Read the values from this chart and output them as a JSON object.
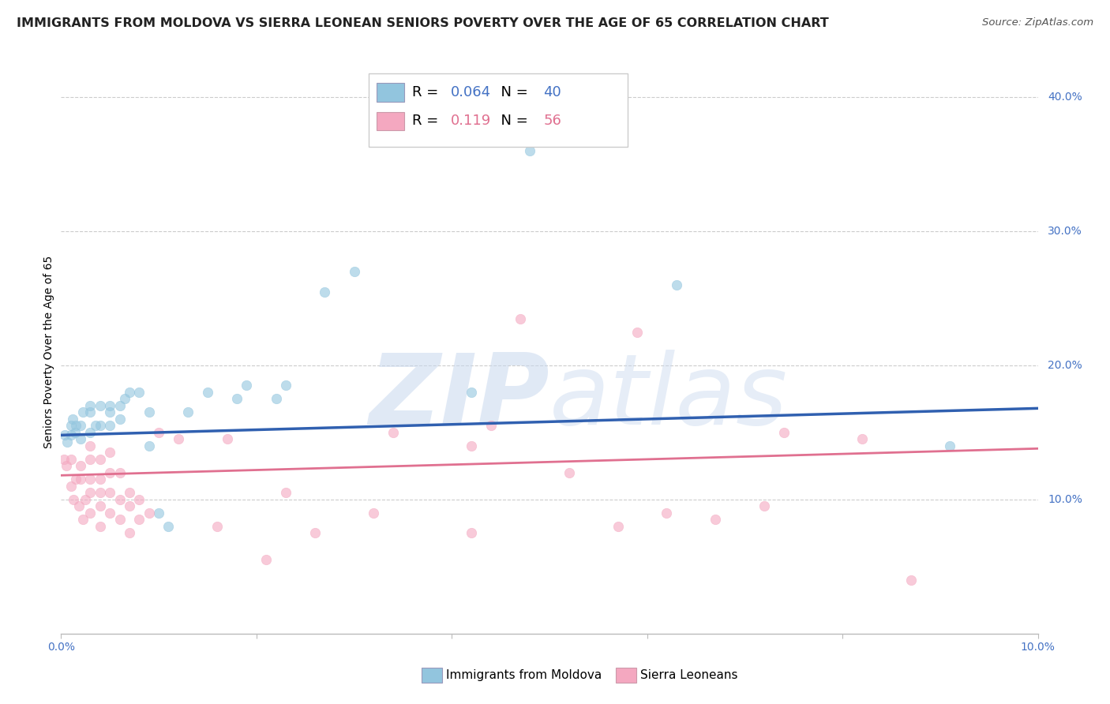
{
  "title": "IMMIGRANTS FROM MOLDOVA VS SIERRA LEONEAN SENIORS POVERTY OVER THE AGE OF 65 CORRELATION CHART",
  "source": "Source: ZipAtlas.com",
  "ylabel": "Seniors Poverty Over the Age of 65",
  "xlim": [
    0.0,
    0.1
  ],
  "ylim": [
    0.0,
    0.42
  ],
  "legend_entries": [
    {
      "label": "Immigrants from Moldova",
      "color": "#92c5de",
      "r": "0.064",
      "n": "40"
    },
    {
      "label": "Sierra Leoneans",
      "color": "#f4a8c0",
      "r": "0.119",
      "n": "56"
    }
  ],
  "watermark_zip": "ZIP",
  "watermark_atlas": "atlas",
  "blue_line_color": "#3060b0",
  "pink_line_color": "#e07090",
  "blue_tick_color": "#4472c4",
  "grid_color": "#cccccc",
  "background_color": "#ffffff",
  "title_fontsize": 11.5,
  "axis_label_fontsize": 10,
  "tick_fontsize": 10,
  "legend_fontsize": 13,
  "blue_scatter": [
    [
      0.0004,
      0.148
    ],
    [
      0.0006,
      0.143
    ],
    [
      0.001,
      0.148
    ],
    [
      0.001,
      0.155
    ],
    [
      0.0012,
      0.16
    ],
    [
      0.0014,
      0.15
    ],
    [
      0.0015,
      0.155
    ],
    [
      0.002,
      0.145
    ],
    [
      0.002,
      0.155
    ],
    [
      0.0022,
      0.165
    ],
    [
      0.003,
      0.15
    ],
    [
      0.003,
      0.165
    ],
    [
      0.003,
      0.17
    ],
    [
      0.0035,
      0.155
    ],
    [
      0.004,
      0.155
    ],
    [
      0.004,
      0.17
    ],
    [
      0.005,
      0.155
    ],
    [
      0.005,
      0.165
    ],
    [
      0.005,
      0.17
    ],
    [
      0.006,
      0.16
    ],
    [
      0.006,
      0.17
    ],
    [
      0.0065,
      0.175
    ],
    [
      0.007,
      0.18
    ],
    [
      0.008,
      0.18
    ],
    [
      0.009,
      0.14
    ],
    [
      0.009,
      0.165
    ],
    [
      0.01,
      0.09
    ],
    [
      0.011,
      0.08
    ],
    [
      0.013,
      0.165
    ],
    [
      0.015,
      0.18
    ],
    [
      0.018,
      0.175
    ],
    [
      0.019,
      0.185
    ],
    [
      0.022,
      0.175
    ],
    [
      0.023,
      0.185
    ],
    [
      0.027,
      0.255
    ],
    [
      0.03,
      0.27
    ],
    [
      0.042,
      0.18
    ],
    [
      0.048,
      0.36
    ],
    [
      0.063,
      0.26
    ],
    [
      0.091,
      0.14
    ]
  ],
  "pink_scatter": [
    [
      0.0003,
      0.13
    ],
    [
      0.0005,
      0.125
    ],
    [
      0.001,
      0.11
    ],
    [
      0.001,
      0.13
    ],
    [
      0.0013,
      0.1
    ],
    [
      0.0015,
      0.115
    ],
    [
      0.0018,
      0.095
    ],
    [
      0.002,
      0.115
    ],
    [
      0.002,
      0.125
    ],
    [
      0.0022,
      0.085
    ],
    [
      0.0025,
      0.1
    ],
    [
      0.003,
      0.09
    ],
    [
      0.003,
      0.105
    ],
    [
      0.003,
      0.115
    ],
    [
      0.003,
      0.13
    ],
    [
      0.003,
      0.14
    ],
    [
      0.004,
      0.08
    ],
    [
      0.004,
      0.095
    ],
    [
      0.004,
      0.105
    ],
    [
      0.004,
      0.115
    ],
    [
      0.004,
      0.13
    ],
    [
      0.005,
      0.09
    ],
    [
      0.005,
      0.105
    ],
    [
      0.005,
      0.12
    ],
    [
      0.005,
      0.135
    ],
    [
      0.006,
      0.085
    ],
    [
      0.006,
      0.1
    ],
    [
      0.006,
      0.12
    ],
    [
      0.007,
      0.075
    ],
    [
      0.007,
      0.095
    ],
    [
      0.007,
      0.105
    ],
    [
      0.008,
      0.085
    ],
    [
      0.008,
      0.1
    ],
    [
      0.009,
      0.09
    ],
    [
      0.01,
      0.15
    ],
    [
      0.012,
      0.145
    ],
    [
      0.016,
      0.08
    ],
    [
      0.017,
      0.145
    ],
    [
      0.021,
      0.055
    ],
    [
      0.023,
      0.105
    ],
    [
      0.026,
      0.075
    ],
    [
      0.032,
      0.09
    ],
    [
      0.034,
      0.15
    ],
    [
      0.042,
      0.075
    ],
    [
      0.042,
      0.14
    ],
    [
      0.044,
      0.155
    ],
    [
      0.047,
      0.235
    ],
    [
      0.052,
      0.12
    ],
    [
      0.057,
      0.08
    ],
    [
      0.059,
      0.225
    ],
    [
      0.062,
      0.09
    ],
    [
      0.067,
      0.085
    ],
    [
      0.072,
      0.095
    ],
    [
      0.074,
      0.15
    ],
    [
      0.082,
      0.145
    ],
    [
      0.087,
      0.04
    ]
  ],
  "blue_line_x": [
    0.0,
    0.1
  ],
  "blue_line_y": [
    0.148,
    0.168
  ],
  "pink_line_x": [
    0.0,
    0.1
  ],
  "pink_line_y": [
    0.118,
    0.138
  ]
}
